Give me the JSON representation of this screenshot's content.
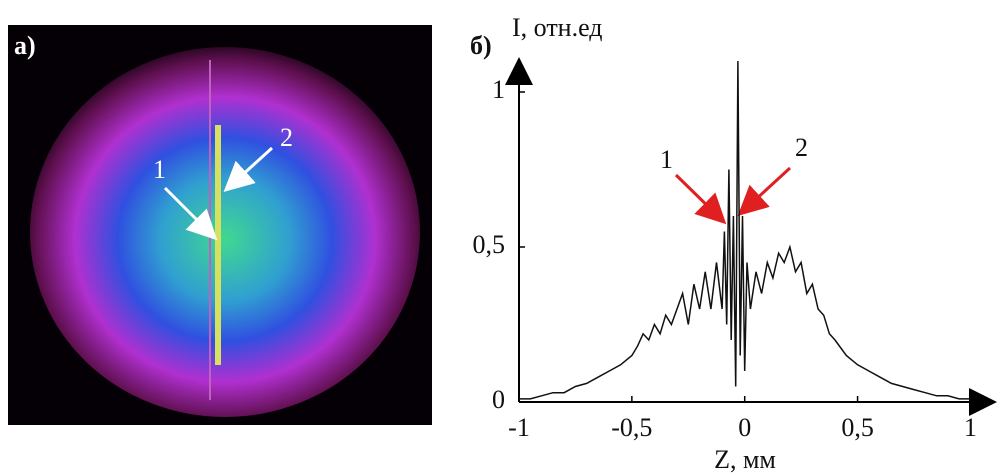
{
  "panel_a": {
    "label": "а)",
    "annotations": [
      "1",
      "2"
    ]
  },
  "chart_data": {
    "type": "line",
    "panel_label": "б)",
    "y_label": "I, отн.ед",
    "x_label": "Z, мм",
    "annotations": [
      "1",
      "2"
    ],
    "x": [
      -1,
      -0.95,
      -0.9,
      -0.85,
      -0.8,
      -0.75,
      -0.7,
      -0.65,
      -0.6,
      -0.55,
      -0.5,
      -0.475,
      -0.45,
      -0.425,
      -0.4,
      -0.375,
      -0.35,
      -0.325,
      -0.3,
      -0.275,
      -0.25,
      -0.225,
      -0.2,
      -0.175,
      -0.15,
      -0.125,
      -0.1,
      -0.09,
      -0.08,
      -0.07,
      -0.06,
      -0.05,
      -0.04,
      -0.03,
      -0.02,
      -0.01,
      0,
      0.01,
      0.025,
      0.05,
      0.075,
      0.1,
      0.125,
      0.15,
      0.175,
      0.2,
      0.225,
      0.25,
      0.275,
      0.3,
      0.325,
      0.35,
      0.375,
      0.4,
      0.45,
      0.5,
      0.55,
      0.6,
      0.65,
      0.7,
      0.75,
      0.8,
      0.85,
      0.9,
      0.95,
      1
    ],
    "series": [
      {
        "color": "#111111",
        "values": [
          0.01,
          0.01,
          0.02,
          0.03,
          0.03,
          0.05,
          0.06,
          0.08,
          0.1,
          0.12,
          0.15,
          0.18,
          0.22,
          0.2,
          0.25,
          0.22,
          0.28,
          0.25,
          0.3,
          0.35,
          0.25,
          0.38,
          0.3,
          0.42,
          0.3,
          0.45,
          0.3,
          0.55,
          0.25,
          0.75,
          0.2,
          0.6,
          0.05,
          1.1,
          0.15,
          0.6,
          0.1,
          0.45,
          0.3,
          0.42,
          0.35,
          0.45,
          0.4,
          0.48,
          0.45,
          0.5,
          0.42,
          0.45,
          0.35,
          0.38,
          0.3,
          0.28,
          0.22,
          0.2,
          0.15,
          0.12,
          0.1,
          0.08,
          0.06,
          0.05,
          0.04,
          0.03,
          0.02,
          0.02,
          0.01,
          0.01
        ]
      }
    ],
    "xlim": [
      -1,
      1.1
    ],
    "ylim": [
      0,
      1.1
    ],
    "xticks": [
      -1,
      {
        "value": -0.5,
        "label": "-0,5"
      },
      0,
      {
        "value": 0.5,
        "label": "0,5"
      },
      1
    ],
    "yticks": [
      0,
      {
        "value": 0.5,
        "label": "0,5"
      },
      1
    ],
    "grid": false
  }
}
